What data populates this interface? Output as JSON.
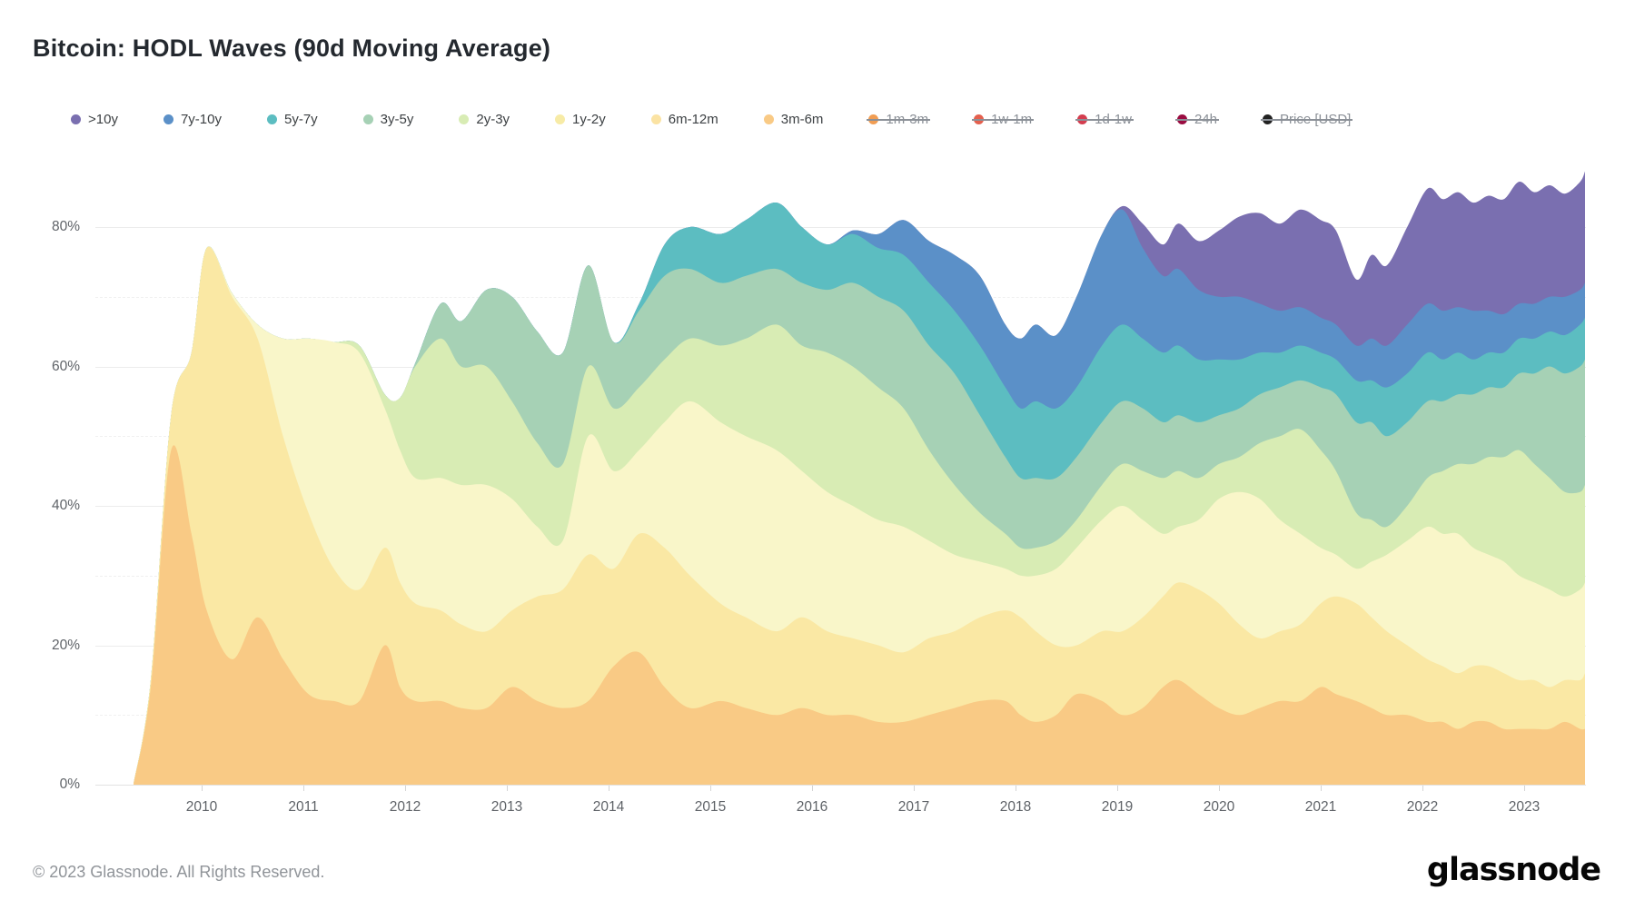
{
  "header": {
    "title": "Bitcoin: HODL Waves (90d Moving Average)"
  },
  "legend": {
    "items": [
      {
        "label": ">10y",
        "color": "#7a6fb0",
        "enabled": true
      },
      {
        "label": "7y-10y",
        "color": "#5b90c8",
        "enabled": true
      },
      {
        "label": "5y-7y",
        "color": "#5cbdc1",
        "enabled": true
      },
      {
        "label": "3y-5y",
        "color": "#a6d1b5",
        "enabled": true
      },
      {
        "label": "2y-3y",
        "color": "#d8ecb4",
        "enabled": true
      },
      {
        "label": "1y-2y",
        "color": "#f7eba6",
        "enabled": true
      },
      {
        "label": "6m-12m",
        "color": "#fbe3a3",
        "enabled": true
      },
      {
        "label": "3m-6m",
        "color": "#f9ca85",
        "enabled": true
      },
      {
        "label": "1m-3m",
        "color": "#f19d53",
        "enabled": false
      },
      {
        "label": "1w-1m",
        "color": "#e4604e",
        "enabled": false
      },
      {
        "label": "1d-1w",
        "color": "#d43d4f",
        "enabled": false
      },
      {
        "label": "24h",
        "color": "#9a0c41",
        "enabled": false
      },
      {
        "label": "Price [USD]",
        "color": "#222222",
        "enabled": false
      }
    ]
  },
  "axes": {
    "y": {
      "tick_values": [
        0,
        20,
        40,
        60,
        80
      ],
      "tick_labels": [
        "0%",
        "20%",
        "40%",
        "60%",
        "80%"
      ],
      "minor_values": [
        10,
        30,
        50,
        70
      ]
    },
    "x": {
      "tick_values": [
        2010,
        2011,
        2012,
        2013,
        2014,
        2015,
        2016,
        2017,
        2018,
        2019,
        2020,
        2021,
        2022,
        2023
      ],
      "tick_labels": [
        "2010",
        "2011",
        "2012",
        "2013",
        "2014",
        "2015",
        "2016",
        "2017",
        "2018",
        "2019",
        "2020",
        "2021",
        "2022",
        "2023"
      ]
    }
  },
  "footer": {
    "copyright": "© 2023 Glassnode. All Rights Reserved.",
    "logo_text": "glassnode"
  },
  "chart_data": {
    "type": "area",
    "stacked": true,
    "title": "Bitcoin: HODL Waves (90d Moving Average)",
    "unit": "percent of supply",
    "ylim": [
      0,
      100
    ],
    "xlim": [
      2009.2,
      2023.65
    ],
    "grid": "horizontal",
    "legend_position": "top",
    "note": "Values are cumulative stacked tops (percent). Band value = this boundary minus the boundary below. Series listed bottom-to-top; 1m-3m, 1w-1m, 1d-1w, 24h and Price [USD] are toggled off in the view.",
    "x": [
      2009.33,
      2009.5,
      2009.7,
      2009.9,
      2010.05,
      2010.3,
      2010.55,
      2010.8,
      2011.05,
      2011.3,
      2011.55,
      2011.8,
      2011.95,
      2012.1,
      2012.35,
      2012.55,
      2012.8,
      2013.05,
      2013.3,
      2013.55,
      2013.8,
      2014.05,
      2014.3,
      2014.55,
      2014.8,
      2015.1,
      2015.35,
      2015.65,
      2015.9,
      2016.15,
      2016.4,
      2016.65,
      2016.9,
      2017.15,
      2017.4,
      2017.65,
      2017.9,
      2018.05,
      2018.2,
      2018.4,
      2018.6,
      2018.85,
      2019.05,
      2019.25,
      2019.45,
      2019.6,
      2019.8,
      2020.0,
      2020.2,
      2020.4,
      2020.6,
      2020.8,
      2021.0,
      2021.15,
      2021.35,
      2021.5,
      2021.65,
      2021.85,
      2022.05,
      2022.2,
      2022.35,
      2022.5,
      2022.65,
      2022.8,
      2022.95,
      2023.1,
      2023.25,
      2023.4,
      2023.55,
      2023.6
    ],
    "series": [
      {
        "name": "3m-6m",
        "color": "#f9ca85",
        "cumulative_percent": [
          0,
          14,
          48,
          36,
          25,
          18,
          24,
          18,
          13,
          12,
          12,
          20,
          14,
          12,
          12,
          11,
          11,
          14,
          12,
          11,
          12,
          17,
          19,
          14,
          11,
          12,
          11,
          10,
          11,
          10,
          10,
          9,
          9,
          10,
          11,
          12,
          12,
          10,
          9,
          10,
          13,
          12,
          10,
          11,
          14,
          15,
          13,
          11,
          10,
          11,
          12,
          12,
          14,
          13,
          12,
          11,
          10,
          10,
          9,
          9,
          8,
          9,
          9,
          8,
          8,
          8,
          8,
          9,
          8,
          8
        ]
      },
      {
        "name": "6m-12m",
        "color": "#fae8a4",
        "cumulative_percent": [
          0,
          15,
          53,
          62,
          77,
          70,
          64,
          50,
          39,
          31,
          28,
          34,
          29,
          26,
          25,
          23,
          22,
          25,
          27,
          28,
          33,
          31,
          36,
          34,
          30,
          26,
          24,
          22,
          24,
          22,
          21,
          20,
          19,
          21,
          22,
          24,
          25,
          24,
          22,
          20,
          20,
          22,
          22,
          24,
          27,
          29,
          28,
          26,
          23,
          21,
          22,
          23,
          26,
          27,
          26,
          24,
          22,
          20,
          18,
          17,
          16,
          17,
          17,
          16,
          15,
          15,
          14,
          15,
          15,
          16
        ]
      },
      {
        "name": "1y-2y",
        "color": "#f9f6c9",
        "cumulative_percent": [
          0,
          15,
          53,
          62,
          77,
          70.5,
          66,
          64,
          64,
          63.5,
          62,
          54,
          48,
          44,
          44,
          43,
          43,
          41,
          37,
          35,
          50,
          45,
          48,
          52,
          55,
          52,
          50,
          48,
          45,
          42,
          40,
          38,
          37,
          35,
          33,
          32,
          31,
          30,
          30,
          31,
          34,
          38,
          40,
          38,
          36,
          37,
          38,
          41,
          42,
          41,
          38,
          36,
          34,
          33,
          31,
          32,
          33,
          35,
          37,
          36,
          36,
          34,
          33,
          32,
          30,
          29,
          28,
          27,
          28,
          29
        ]
      },
      {
        "name": "2y-3y",
        "color": "#d8ecb4",
        "cumulative_percent": [
          0,
          15,
          53,
          62,
          77,
          70.5,
          66,
          64,
          64,
          63.5,
          63,
          56,
          55.5,
          60,
          64,
          60,
          60,
          55,
          49,
          46,
          60,
          54,
          57,
          61,
          64,
          63,
          64,
          66,
          63,
          62,
          60,
          57,
          54,
          48,
          43,
          39,
          36,
          34,
          34,
          35,
          38,
          43,
          46,
          45,
          44,
          45,
          44,
          46,
          47,
          49,
          50,
          51,
          48,
          45,
          39,
          38,
          37,
          40,
          44,
          45,
          46,
          46,
          47,
          47,
          48,
          46,
          44,
          42,
          42,
          43
        ]
      },
      {
        "name": "3y-5y",
        "color": "#a6d1b5",
        "cumulative_percent": [
          0,
          15,
          53,
          62,
          77,
          70.5,
          66,
          64,
          64,
          63.5,
          63,
          56,
          55.5,
          60.5,
          69,
          66.5,
          71,
          70,
          65,
          62,
          74.5,
          63.5,
          68,
          73,
          74,
          72,
          73,
          74,
          72,
          71,
          72,
          70,
          68,
          63,
          59,
          53,
          47,
          44,
          44,
          44,
          47,
          52,
          55,
          54,
          52,
          53,
          52,
          53,
          54,
          56,
          57,
          58,
          57,
          56,
          52,
          52,
          50,
          52,
          55,
          55,
          56,
          56,
          57,
          57,
          59,
          59,
          60,
          59,
          60,
          61
        ]
      },
      {
        "name": "5y-7y",
        "color": "#5cbdc1",
        "cumulative_percent": [
          0,
          15,
          53,
          62,
          77,
          70.5,
          66,
          64,
          64,
          63.5,
          63,
          56,
          55.5,
          60.5,
          69,
          66.5,
          71,
          70,
          65,
          62,
          74.5,
          63.5,
          69,
          77.5,
          80,
          79,
          81,
          83.5,
          80,
          77.5,
          79,
          77,
          76,
          72,
          68,
          63,
          57,
          54,
          55,
          54,
          57,
          63,
          66,
          64,
          62,
          63,
          61,
          61,
          61,
          62,
          62,
          63,
          62,
          61,
          58,
          58,
          57,
          59,
          62,
          61,
          62,
          61,
          62,
          62,
          64,
          64,
          65,
          64.5,
          66,
          67
        ]
      },
      {
        "name": "7y-10y",
        "color": "#5b90c8",
        "cumulative_percent": [
          0,
          15,
          53,
          62,
          77,
          70.5,
          66,
          64,
          64,
          63.5,
          63,
          56,
          55.5,
          60.5,
          69,
          66.5,
          71,
          70,
          65,
          62,
          74.5,
          63.5,
          69,
          77.5,
          80,
          79,
          81,
          83.5,
          80,
          77.5,
          79.5,
          79,
          81,
          78,
          76,
          73,
          66,
          64,
          66,
          64.5,
          70,
          79,
          82.5,
          77,
          73,
          74,
          71,
          70,
          70,
          69,
          68,
          68.5,
          67,
          66,
          63,
          64,
          63,
          66,
          69,
          68,
          68.5,
          68,
          68,
          67.5,
          69,
          69,
          70,
          70,
          71,
          72
        ]
      },
      {
        "name": ">10y",
        "color": "#7a6fb0",
        "cumulative_percent": [
          0,
          15,
          53,
          62,
          77,
          70.5,
          66,
          64,
          64,
          63.5,
          63,
          56,
          55.5,
          60.5,
          69,
          66.5,
          71,
          70,
          65,
          62,
          74.5,
          63.5,
          69,
          77.5,
          80,
          79,
          81,
          83.5,
          80,
          77.5,
          79.5,
          79,
          81,
          78,
          76,
          73,
          66,
          64,
          66,
          64.5,
          70,
          79,
          83,
          80.5,
          77.5,
          80.5,
          78,
          79.5,
          81.5,
          82,
          80.5,
          82.5,
          81,
          79.5,
          72.5,
          76,
          74.5,
          80,
          85.5,
          84,
          85,
          83.5,
          84.5,
          84,
          86.5,
          85,
          86,
          84.8,
          86.5,
          88
        ]
      }
    ]
  }
}
